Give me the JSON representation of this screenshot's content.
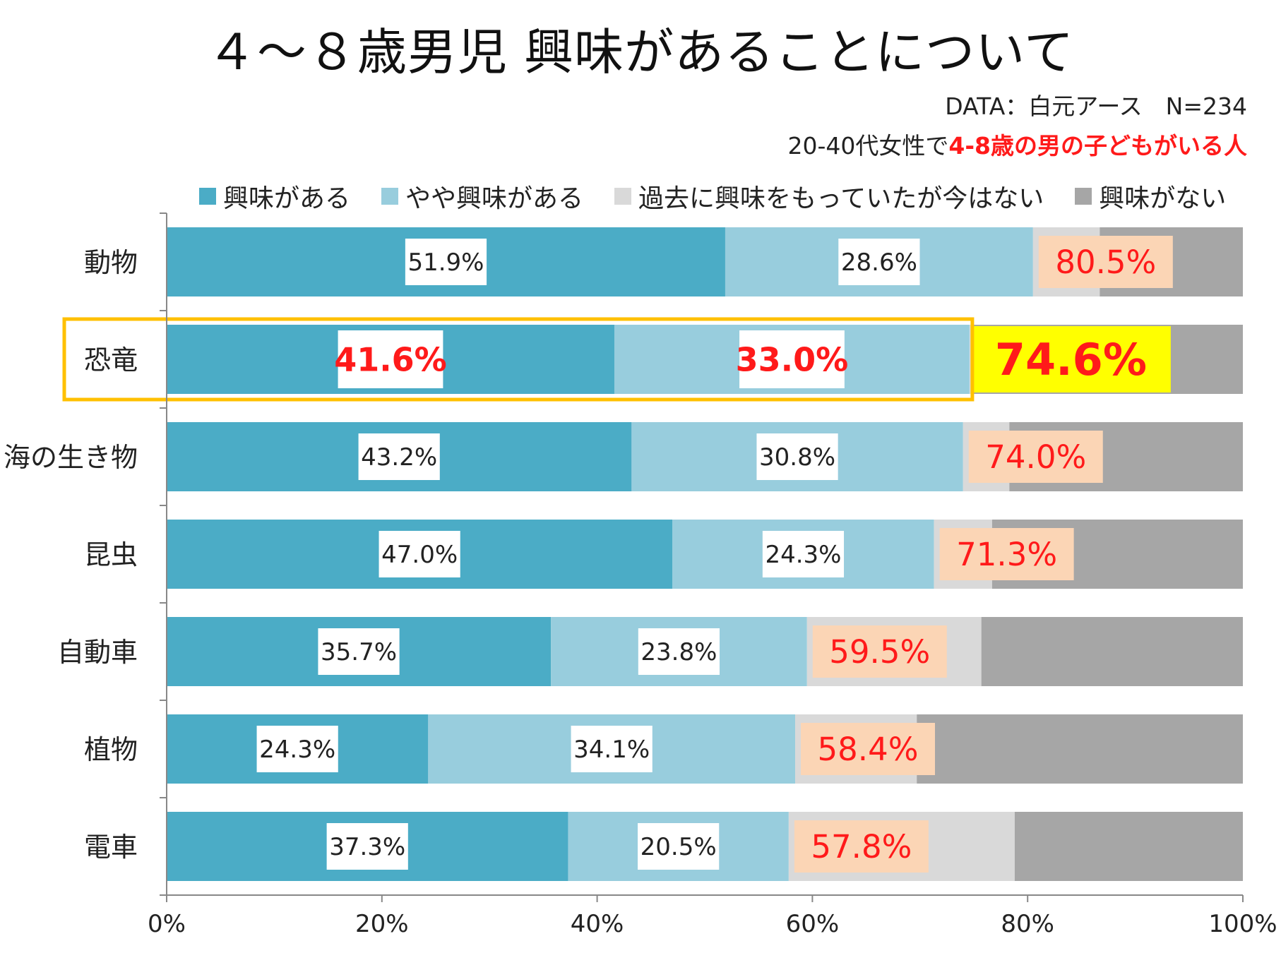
{
  "title": "４～８歳男児 興味があることについて",
  "source": "DATA：白元アース　N=234",
  "target": {
    "prefix": "20-40代女性で",
    "emphasis": "4-8歳の男の子どもがいる人"
  },
  "colors": {
    "interested": "#4bacc6",
    "somewhat": "#98cddd",
    "past": "#d9d9d9",
    "not": "#a6a6a6",
    "total_label_bg": "#fbd5b5",
    "total_label_text": "#ff1a1a",
    "highlight_bg": "#ffff00",
    "highlight_border": "#ffc000"
  },
  "chart_data": {
    "type": "bar",
    "orientation": "horizontal",
    "stacked": "percent",
    "title": "４～８歳男児 興味があることについて",
    "categories": [
      "動物",
      "恐竜",
      "海の生き物",
      "昆虫",
      "自動車",
      "植物",
      "電車"
    ],
    "series": [
      {
        "name": "興味がある",
        "values": [
          51.9,
          41.6,
          43.2,
          47.0,
          35.7,
          24.3,
          37.3
        ]
      },
      {
        "name": "やや興味がある",
        "values": [
          28.6,
          33.0,
          30.8,
          24.3,
          23.8,
          34.1,
          20.5
        ]
      },
      {
        "name": "過去に興味をもっていたが今はない",
        "values": [
          6.2,
          0.3,
          4.3,
          5.4,
          16.2,
          11.3,
          21.0
        ]
      },
      {
        "name": "興味がない",
        "values": [
          13.3,
          25.1,
          21.7,
          23.3,
          24.3,
          30.3,
          21.2
        ]
      }
    ],
    "labels": {
      "series1": [
        "51.9%",
        "41.6%",
        "43.2%",
        "47.0%",
        "35.7%",
        "24.3%",
        "37.3%"
      ],
      "series2": [
        "28.6%",
        "33.0%",
        "30.8%",
        "24.3%",
        "23.8%",
        "34.1%",
        "20.5%"
      ],
      "totals": [
        "80.5%",
        "74.6%",
        "74.0%",
        "71.3%",
        "59.5%",
        "58.4%",
        "57.8%"
      ]
    },
    "highlight_category": "恐竜",
    "x_ticks": [
      "0%",
      "20%",
      "40%",
      "60%",
      "80%",
      "100%"
    ],
    "xlim": [
      0,
      100
    ],
    "legend_position": "top"
  }
}
